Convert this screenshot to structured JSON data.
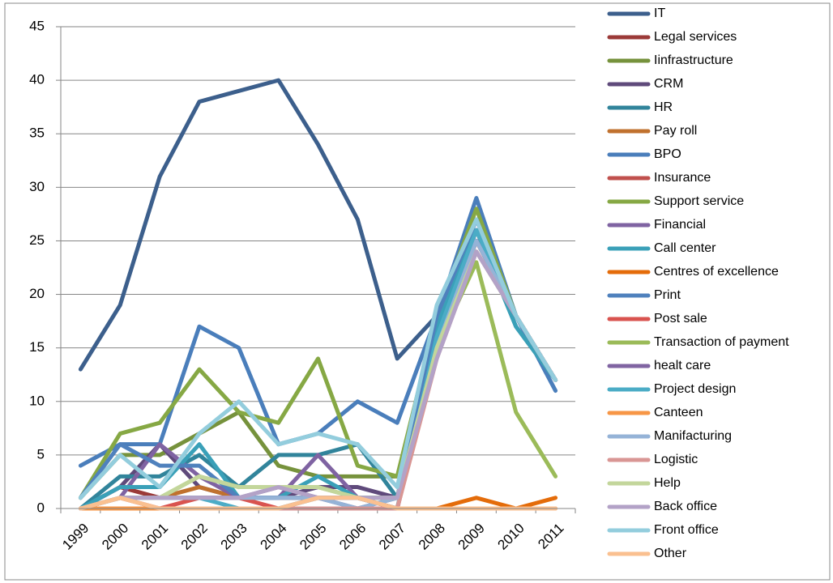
{
  "chart_data": {
    "type": "line",
    "categories": [
      "1999",
      "2000",
      "2001",
      "2002",
      "2003",
      "2004",
      "2005",
      "2006",
      "2007",
      "2008",
      "2009",
      "2010",
      "2011"
    ],
    "ylim": [
      0,
      45
    ],
    "yticks": [
      0,
      5,
      10,
      15,
      20,
      25,
      30,
      35,
      40,
      45
    ],
    "grid": true,
    "legend": "right",
    "series": [
      {
        "name": "IT",
        "color": "#3c5f8c",
        "values": [
          13,
          19,
          31,
          38,
          39,
          40,
          34,
          27,
          14,
          18,
          27,
          18,
          12
        ]
      },
      {
        "name": "Legal services",
        "color": "#9b3a38",
        "values": [
          0,
          2,
          1,
          1,
          1,
          1,
          1,
          1,
          0,
          15,
          25,
          18,
          12
        ]
      },
      {
        "name": "Iinfrastructure",
        "color": "#76923c",
        "values": [
          1,
          5,
          5,
          7,
          9,
          4,
          3,
          3,
          3,
          15,
          25,
          18,
          12
        ]
      },
      {
        "name": "CRM",
        "color": "#5f4a7b",
        "values": [
          0,
          2,
          6,
          2,
          1,
          1,
          2,
          2,
          1,
          16,
          26,
          18,
          12
        ]
      },
      {
        "name": "HR",
        "color": "#31849b",
        "values": [
          0,
          3,
          3,
          5,
          2,
          5,
          5,
          6,
          1,
          17,
          26,
          17,
          12
        ]
      },
      {
        "name": "Pay roll",
        "color": "#c0712e",
        "values": [
          0,
          1,
          1,
          2,
          1,
          1,
          1,
          1,
          0,
          15,
          25,
          18,
          12
        ]
      },
      {
        "name": "BPO",
        "color": "#4a7ebb",
        "values": [
          4,
          6,
          6,
          17,
          15,
          6,
          7,
          10,
          8,
          18,
          29,
          18,
          11
        ]
      },
      {
        "name": "Insurance",
        "color": "#c0504d",
        "values": [
          0,
          1,
          1,
          1,
          1,
          1,
          1,
          1,
          0,
          15,
          25,
          18,
          12
        ]
      },
      {
        "name": "Support service",
        "color": "#86a844",
        "values": [
          1,
          7,
          8,
          13,
          9,
          8,
          14,
          4,
          3,
          18,
          28,
          18,
          12
        ]
      },
      {
        "name": "Financial",
        "color": "#7f63a2",
        "values": [
          0,
          1,
          6,
          3,
          1,
          1,
          5,
          1,
          1,
          16,
          26,
          18,
          12
        ]
      },
      {
        "name": "Call center",
        "color": "#3aa0b8",
        "values": [
          0,
          2,
          2,
          6,
          1,
          1,
          3,
          1,
          1,
          17,
          26,
          17,
          12
        ]
      },
      {
        "name": "Centres of excellence",
        "color": "#e46c0a",
        "values": [
          0,
          0,
          0,
          0,
          0,
          0,
          0,
          0,
          0,
          0,
          1,
          0,
          1
        ]
      },
      {
        "name": " Print",
        "color": "#4f81bd",
        "values": [
          1,
          6,
          4,
          4,
          1,
          1,
          1,
          1,
          1,
          18,
          27,
          18,
          12
        ]
      },
      {
        "name": "Post sale",
        "color": "#d9534f",
        "values": [
          0,
          1,
          0,
          1,
          1,
          0,
          1,
          1,
          0,
          15,
          25,
          18,
          12
        ]
      },
      {
        "name": "Transaction of payment",
        "color": "#9bbb59",
        "values": [
          0,
          1,
          1,
          3,
          2,
          2,
          2,
          1,
          1,
          15,
          23,
          9,
          3
        ]
      },
      {
        "name": "healt care",
        "color": "#8064a2",
        "values": [
          0,
          1,
          1,
          1,
          1,
          2,
          1,
          0,
          1,
          15,
          25,
          18,
          12
        ]
      },
      {
        "name": "Project design",
        "color": "#4bacc6",
        "values": [
          0,
          1,
          1,
          1,
          0,
          0,
          1,
          1,
          0,
          16,
          26,
          18,
          12
        ]
      },
      {
        "name": "Canteen",
        "color": "#f79646",
        "values": [
          0,
          0,
          0,
          0,
          0,
          0,
          0,
          0,
          0,
          0,
          0,
          0,
          0
        ]
      },
      {
        "name": "Manifacturing",
        "color": "#95b3d7",
        "values": [
          0,
          1,
          1,
          1,
          1,
          1,
          1,
          0,
          1,
          15,
          25,
          18,
          12
        ]
      },
      {
        "name": "Logistic",
        "color": "#d99694",
        "values": [
          0,
          1,
          0,
          0,
          0,
          0,
          0,
          0,
          0,
          14,
          24,
          18,
          12
        ]
      },
      {
        "name": "Help",
        "color": "#c3d69b",
        "values": [
          0,
          1,
          1,
          3,
          2,
          2,
          2,
          1,
          1,
          15,
          24,
          18,
          12
        ]
      },
      {
        "name": "Back office",
        "color": "#b3a2c7",
        "values": [
          0,
          1,
          1,
          1,
          1,
          2,
          1,
          1,
          1,
          14,
          24,
          18,
          12
        ]
      },
      {
        "name": "Front office",
        "color": "#93cddd",
        "values": [
          1,
          5,
          2,
          7,
          10,
          6,
          7,
          6,
          2,
          19,
          27,
          18,
          12
        ]
      },
      {
        "name": "Other",
        "color": "#fac090",
        "values": [
          0,
          1,
          0,
          0,
          0,
          0,
          1,
          1,
          0,
          0,
          0,
          0,
          0
        ]
      }
    ]
  }
}
